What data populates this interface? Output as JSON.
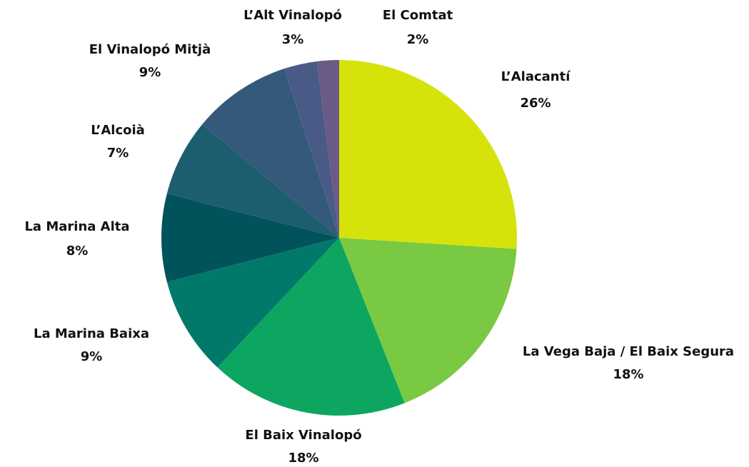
{
  "chart_data": {
    "type": "pie",
    "categories": [
      "L’Alacantí",
      "La Vega Baja / El Baix Segura",
      "El Baix Vinalopó",
      "La Marina Baixa",
      "La Marina Alta",
      "L’Alcoià",
      "El Vinalopó Mitjà",
      "L’Alt Vinalopó",
      "El Comtat"
    ],
    "values": [
      26,
      18,
      18,
      9,
      8,
      7,
      9,
      3,
      2
    ],
    "value_labels": [
      "26%",
      "18%",
      "18%",
      "9%",
      "8%",
      "7%",
      "9%",
      "3%",
      "2%"
    ],
    "colors": [
      "#d5e30b",
      "#79c943",
      "#0ca660",
      "#00796b",
      "#00535b",
      "#1c5e6e",
      "#34597a",
      "#4a5a86",
      "#6a5b86"
    ]
  }
}
